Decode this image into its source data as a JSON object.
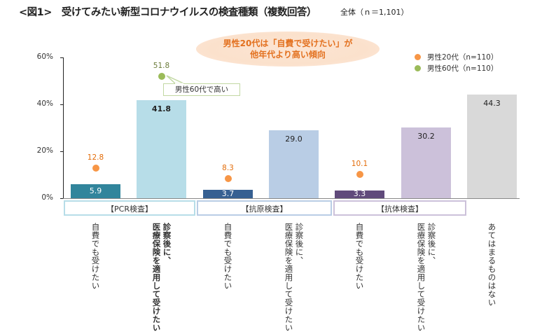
{
  "title": "<図1>　受けてみたい新型コロナウイルスの検査種類（複数回答）",
  "subtitle": "全体（ｎ＝1,101）",
  "highlight": {
    "line1": "男性20代は「自費で受けたい」が",
    "line2": "他年代より高い傾向"
  },
  "callout": "男性60代で高い",
  "legend": [
    {
      "label": "男性20代（n=110）",
      "color": "#f79646"
    },
    {
      "label": "男性60代（n=110）",
      "color": "#9bbb59"
    }
  ],
  "groups": [
    {
      "label": "【PCR検査】",
      "border": "#b7dde8"
    },
    {
      "label": "【抗原検査】",
      "border": "#b9cde5"
    },
    {
      "label": "【抗体検査】",
      "border": "#ccc1da"
    }
  ],
  "chart_data": {
    "type": "bar",
    "title": "<図1>　受けてみたい新型コロナウイルスの検査種類（複数回答）",
    "ylabel": "",
    "xlabel": "",
    "ylim": [
      0,
      60
    ],
    "yticks": [
      "0%",
      "20%",
      "40%",
      "60%"
    ],
    "ytick_values": [
      0,
      20,
      40,
      60
    ],
    "grid": false,
    "legend_position": "top-right",
    "categories": [
      "自費でも受けたい",
      "診察後に、医療保険を適用して受けたい",
      "自費でも受けたい",
      "診察後に、医療保険を適用して受けたい",
      "自費でも受けたい",
      "診察後に、医療保険を適用して受けたい",
      "あてはまるものはない"
    ],
    "category_groups": [
      "PCR検査",
      "PCR検査",
      "抗原検査",
      "抗原検査",
      "抗体検査",
      "抗体検査",
      ""
    ],
    "series": [
      {
        "name": "全体（n=1,101）",
        "values": [
          5.9,
          41.8,
          3.7,
          29.0,
          3.3,
          30.2,
          44.3
        ],
        "colors": [
          "#31859c",
          "#b7dde8",
          "#366092",
          "#b9cde5",
          "#604a7b",
          "#ccc1da",
          "#d9d9d9"
        ],
        "labels": [
          "5.9",
          "41.8",
          "3.7",
          "29.0",
          "3.3",
          "30.2",
          "44.3"
        ]
      },
      {
        "name": "男性20代（n=110）",
        "values": [
          12.8,
          null,
          8.3,
          null,
          10.1,
          null,
          null
        ],
        "labels": [
          "12.8",
          "",
          "8.3",
          "",
          "10.1",
          "",
          ""
        ],
        "color": "#f79646"
      },
      {
        "name": "男性60代（n=110）",
        "values": [
          null,
          51.8,
          null,
          null,
          null,
          null,
          null
        ],
        "labels": [
          "",
          "51.8",
          "",
          "",
          "",
          "",
          ""
        ],
        "color": "#9bbb59"
      }
    ]
  }
}
